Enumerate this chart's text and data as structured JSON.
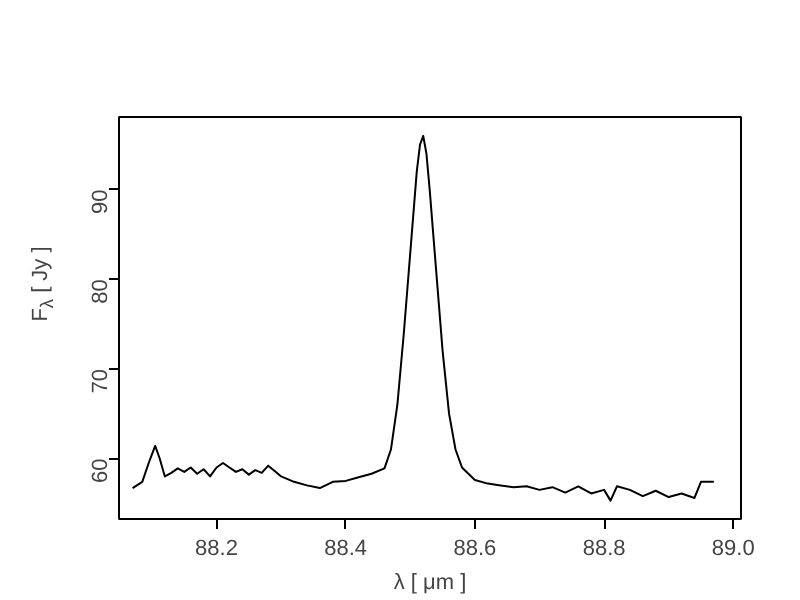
{
  "chart_data": {
    "type": "line",
    "xlabel": "λ [ μm ]",
    "ylabel": "F$_{λ}$ [ Jy ]",
    "xlim": [
      88.049,
      89.012
    ],
    "ylim": [
      53.25,
      98.1
    ],
    "xticks": [
      {
        "value": 88.2,
        "label": "88.2"
      },
      {
        "value": 88.4,
        "label": "88.4"
      },
      {
        "value": 88.6,
        "label": "88.6"
      },
      {
        "value": 88.8,
        "label": "88.8"
      },
      {
        "value": 89.0,
        "label": "89.0"
      }
    ],
    "yticks": [
      60,
      70,
      80,
      90
    ],
    "grid": false,
    "marker": "none",
    "line_style": "solid",
    "series": [
      {
        "color": "#000000",
        "x": [
          88.07,
          88.085,
          88.095,
          88.105,
          88.112,
          88.12,
          88.13,
          88.14,
          88.15,
          88.16,
          88.17,
          88.18,
          88.19,
          88.2,
          88.21,
          88.22,
          88.23,
          88.24,
          88.25,
          88.26,
          88.27,
          88.28,
          88.29,
          88.3,
          88.32,
          88.34,
          88.36,
          88.38,
          88.4,
          88.42,
          88.44,
          88.46,
          88.47,
          88.48,
          88.49,
          88.5,
          88.51,
          88.515,
          88.52,
          88.525,
          88.53,
          88.54,
          88.55,
          88.56,
          88.57,
          88.58,
          88.6,
          88.62,
          88.64,
          88.66,
          88.68,
          88.7,
          88.72,
          88.74,
          88.76,
          88.78,
          88.8,
          88.81,
          88.82,
          88.84,
          88.86,
          88.88,
          88.9,
          88.92,
          88.94,
          88.95,
          88.97
        ],
        "values": [
          56.7,
          57.4,
          59.5,
          61.4,
          60.0,
          58.0,
          58.4,
          58.9,
          58.5,
          59.0,
          58.3,
          58.8,
          58.0,
          59.0,
          59.5,
          59.0,
          58.5,
          58.8,
          58.2,
          58.7,
          58.4,
          59.2,
          58.6,
          58.0,
          57.4,
          57.0,
          56.7,
          57.4,
          57.5,
          57.9,
          58.3,
          58.9,
          61.0,
          66.0,
          74.0,
          83.0,
          92.0,
          95.0,
          96.0,
          94.0,
          90.0,
          81.0,
          72.0,
          65.0,
          61.0,
          59.0,
          57.6,
          57.2,
          57.0,
          56.8,
          56.9,
          56.5,
          56.8,
          56.2,
          56.9,
          56.1,
          56.5,
          55.3,
          56.9,
          56.5,
          55.8,
          56.4,
          55.7,
          56.1,
          55.6,
          57.4,
          57.4
        ]
      }
    ]
  }
}
